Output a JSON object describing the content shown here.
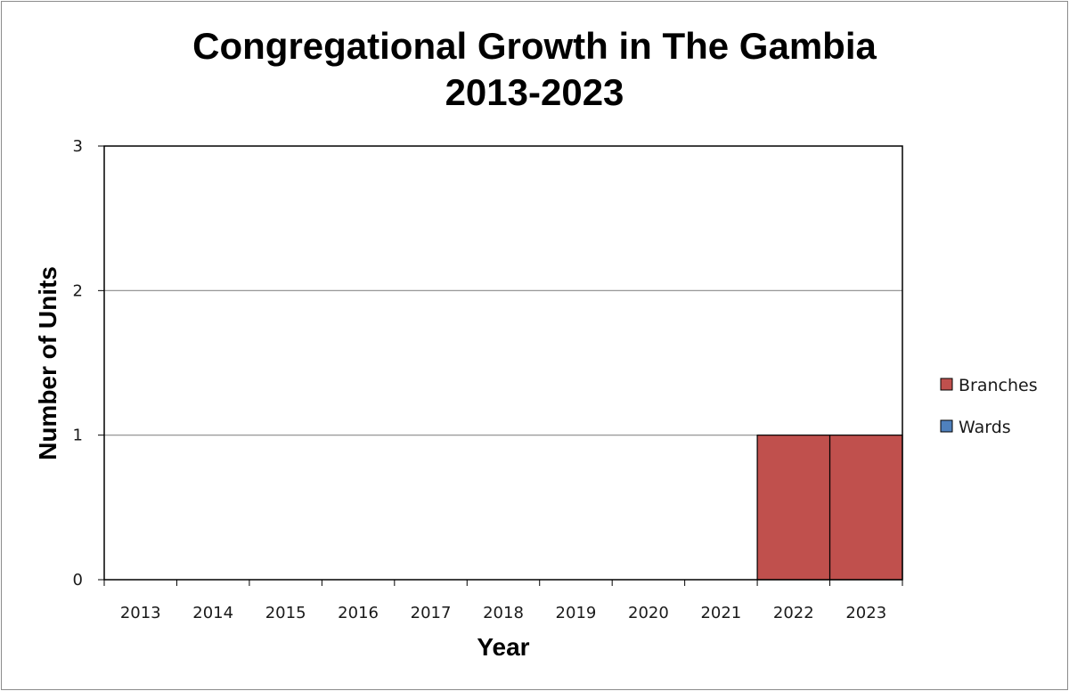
{
  "chart_data": {
    "type": "bar",
    "title_line1": "Congregational Growth in The Gambia",
    "title_line2": "2013-2023",
    "xlabel": "Year",
    "ylabel": "Number of Units",
    "categories": [
      "2013",
      "2014",
      "2015",
      "2016",
      "2017",
      "2018",
      "2019",
      "2020",
      "2021",
      "2022",
      "2023"
    ],
    "series": [
      {
        "name": "Branches",
        "color": "#c0504d",
        "values": [
          0,
          0,
          0,
          0,
          0,
          0,
          0,
          0,
          0,
          1,
          1
        ]
      },
      {
        "name": "Wards",
        "color": "#4f81bd",
        "values": [
          0,
          0,
          0,
          0,
          0,
          0,
          0,
          0,
          0,
          0,
          0
        ]
      }
    ],
    "stacked": true,
    "ylim": [
      0,
      3
    ],
    "yticks": [
      "0",
      "1",
      "2",
      "3"
    ],
    "grid": true,
    "legend_position": "right"
  }
}
